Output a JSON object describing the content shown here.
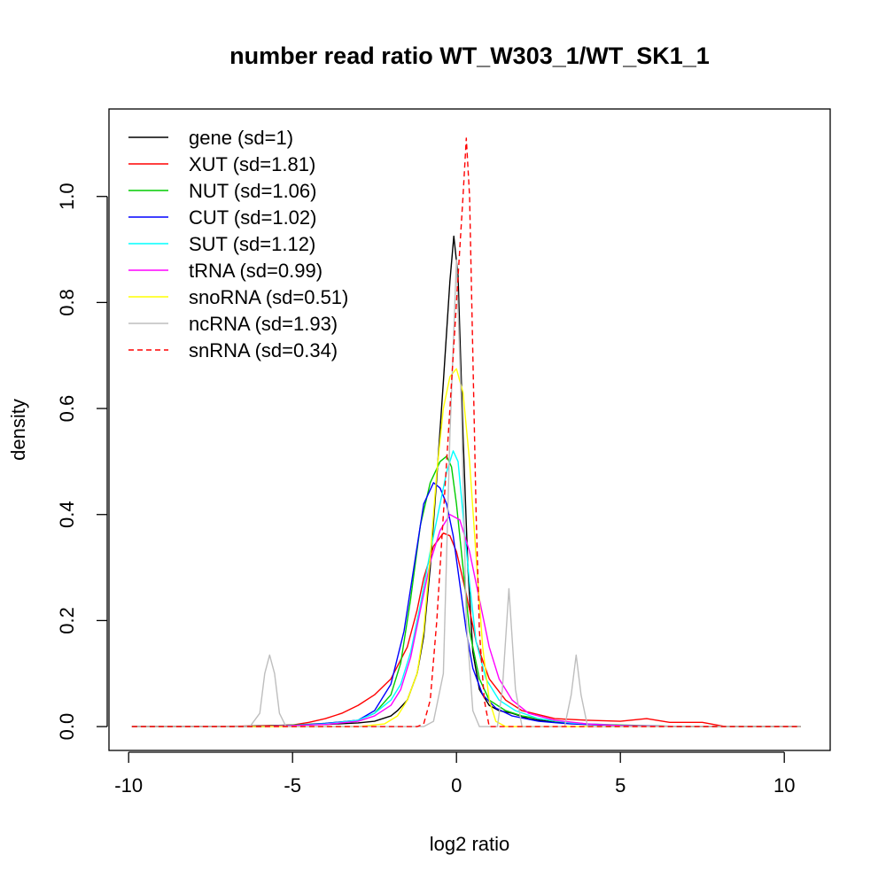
{
  "chart_data": {
    "type": "line",
    "title": "number read ratio WT_W303_1/WT_SK1_1",
    "xlabel": "log2 ratio",
    "ylabel": "density",
    "xlim": [
      -10.6,
      11.4
    ],
    "ylim": [
      -0.045,
      1.165
    ],
    "xticks": [
      -10,
      -5,
      0,
      5,
      10
    ],
    "xtick_labels": [
      "-10",
      "-5",
      "0",
      "5",
      "10"
    ],
    "yticks": [
      0.0,
      0.2,
      0.4,
      0.6,
      0.8,
      1.0
    ],
    "ytick_labels": [
      "0.0",
      "0.2",
      "0.4",
      "0.6",
      "0.8",
      "1.0"
    ],
    "grid": false,
    "legend_position": "top-left",
    "series": [
      {
        "name": "gene (sd=1)",
        "color": "#000000",
        "dash": "solid",
        "points": [
          [
            -9.9,
            0
          ],
          [
            -7,
            0
          ],
          [
            -5,
            0.003
          ],
          [
            -4,
            0.004
          ],
          [
            -3,
            0.007
          ],
          [
            -2.5,
            0.01
          ],
          [
            -2,
            0.02
          ],
          [
            -1.8,
            0.03
          ],
          [
            -1.5,
            0.05
          ],
          [
            -1.2,
            0.1
          ],
          [
            -1,
            0.17
          ],
          [
            -0.8,
            0.3
          ],
          [
            -0.6,
            0.47
          ],
          [
            -0.4,
            0.65
          ],
          [
            -0.2,
            0.84
          ],
          [
            -0.08,
            0.925
          ],
          [
            0.05,
            0.85
          ],
          [
            0.2,
            0.55
          ],
          [
            0.35,
            0.3
          ],
          [
            0.5,
            0.14
          ],
          [
            0.7,
            0.07
          ],
          [
            1,
            0.04
          ],
          [
            1.3,
            0.03
          ],
          [
            1.7,
            0.025
          ],
          [
            2.2,
            0.015
          ],
          [
            3,
            0.008
          ],
          [
            4,
            0.004
          ],
          [
            5,
            0.002
          ],
          [
            7,
            0
          ],
          [
            10.5,
            0
          ]
        ]
      },
      {
        "name": "XUT (sd=1.81)",
        "color": "#ff0000",
        "dash": "solid",
        "points": [
          [
            -9.9,
            0
          ],
          [
            -6,
            0.001
          ],
          [
            -5,
            0.003
          ],
          [
            -4.5,
            0.008
          ],
          [
            -4,
            0.015
          ],
          [
            -3.5,
            0.025
          ],
          [
            -3,
            0.04
          ],
          [
            -2.5,
            0.06
          ],
          [
            -2,
            0.09
          ],
          [
            -1.5,
            0.15
          ],
          [
            -1.2,
            0.22
          ],
          [
            -1,
            0.28
          ],
          [
            -0.7,
            0.34
          ],
          [
            -0.4,
            0.365
          ],
          [
            -0.2,
            0.36
          ],
          [
            0,
            0.33
          ],
          [
            0.3,
            0.25
          ],
          [
            0.6,
            0.16
          ],
          [
            1,
            0.09
          ],
          [
            1.5,
            0.05
          ],
          [
            2,
            0.03
          ],
          [
            3,
            0.015
          ],
          [
            4,
            0.012
          ],
          [
            5,
            0.01
          ],
          [
            5.8,
            0.015
          ],
          [
            6.5,
            0.008
          ],
          [
            7.5,
            0.008
          ],
          [
            8.2,
            0
          ],
          [
            10.5,
            0
          ]
        ]
      },
      {
        "name": "NUT (sd=1.06)",
        "color": "#00cc00",
        "dash": "solid",
        "points": [
          [
            -9.9,
            0
          ],
          [
            -6,
            0
          ],
          [
            -5,
            0.003
          ],
          [
            -4,
            0.006
          ],
          [
            -3,
            0.012
          ],
          [
            -2.5,
            0.025
          ],
          [
            -2,
            0.06
          ],
          [
            -1.7,
            0.12
          ],
          [
            -1.4,
            0.24
          ],
          [
            -1.1,
            0.38
          ],
          [
            -0.8,
            0.46
          ],
          [
            -0.5,
            0.5
          ],
          [
            -0.3,
            0.51
          ],
          [
            -0.15,
            0.49
          ],
          [
            0,
            0.42
          ],
          [
            0.2,
            0.3
          ],
          [
            0.4,
            0.18
          ],
          [
            0.7,
            0.09
          ],
          [
            1,
            0.05
          ],
          [
            1.5,
            0.03
          ],
          [
            2,
            0.02
          ],
          [
            3,
            0.01
          ],
          [
            4,
            0.005
          ],
          [
            5,
            0.003
          ],
          [
            7,
            0
          ],
          [
            10.5,
            0
          ]
        ]
      },
      {
        "name": "CUT (sd=1.02)",
        "color": "#0000ff",
        "dash": "solid",
        "points": [
          [
            -9.9,
            0
          ],
          [
            -6,
            0
          ],
          [
            -5,
            0.002
          ],
          [
            -4,
            0.006
          ],
          [
            -3,
            0.012
          ],
          [
            -2.5,
            0.03
          ],
          [
            -2,
            0.08
          ],
          [
            -1.6,
            0.18
          ],
          [
            -1.3,
            0.3
          ],
          [
            -1,
            0.42
          ],
          [
            -0.7,
            0.46
          ],
          [
            -0.5,
            0.45
          ],
          [
            -0.3,
            0.42
          ],
          [
            -0.1,
            0.36
          ],
          [
            0.1,
            0.27
          ],
          [
            0.3,
            0.18
          ],
          [
            0.5,
            0.11
          ],
          [
            0.8,
            0.06
          ],
          [
            1.2,
            0.035
          ],
          [
            1.7,
            0.02
          ],
          [
            2.5,
            0.01
          ],
          [
            3.5,
            0.005
          ],
          [
            5,
            0.002
          ],
          [
            7,
            0
          ],
          [
            10.5,
            0
          ]
        ]
      },
      {
        "name": "SUT (sd=1.12)",
        "color": "#00ffff",
        "dash": "solid",
        "points": [
          [
            -9.9,
            0
          ],
          [
            -6,
            0
          ],
          [
            -5,
            0.002
          ],
          [
            -4,
            0.005
          ],
          [
            -3,
            0.012
          ],
          [
            -2.5,
            0.025
          ],
          [
            -2,
            0.05
          ],
          [
            -1.7,
            0.08
          ],
          [
            -1.4,
            0.14
          ],
          [
            -1.1,
            0.23
          ],
          [
            -0.8,
            0.33
          ],
          [
            -0.5,
            0.42
          ],
          [
            -0.3,
            0.48
          ],
          [
            -0.1,
            0.52
          ],
          [
            0.05,
            0.5
          ],
          [
            0.2,
            0.4
          ],
          [
            0.4,
            0.27
          ],
          [
            0.6,
            0.16
          ],
          [
            0.9,
            0.09
          ],
          [
            1.3,
            0.05
          ],
          [
            1.8,
            0.03
          ],
          [
            2.5,
            0.015
          ],
          [
            3.5,
            0.007
          ],
          [
            5,
            0.002
          ],
          [
            7,
            0
          ],
          [
            10.5,
            0
          ]
        ]
      },
      {
        "name": "tRNA (sd=0.99)",
        "color": "#ff00ff",
        "dash": "solid",
        "points": [
          [
            -9.9,
            0
          ],
          [
            -6,
            0
          ],
          [
            -5,
            0.002
          ],
          [
            -4,
            0.004
          ],
          [
            -3,
            0.01
          ],
          [
            -2.5,
            0.02
          ],
          [
            -2,
            0.04
          ],
          [
            -1.7,
            0.07
          ],
          [
            -1.4,
            0.13
          ],
          [
            -1.1,
            0.22
          ],
          [
            -0.8,
            0.31
          ],
          [
            -0.5,
            0.37
          ],
          [
            -0.2,
            0.4
          ],
          [
            0.1,
            0.39
          ],
          [
            0.4,
            0.33
          ],
          [
            0.7,
            0.24
          ],
          [
            1,
            0.15
          ],
          [
            1.3,
            0.09
          ],
          [
            1.7,
            0.05
          ],
          [
            2.2,
            0.025
          ],
          [
            3,
            0.012
          ],
          [
            4,
            0.005
          ],
          [
            5,
            0.002
          ],
          [
            7,
            0
          ],
          [
            10.5,
            0
          ]
        ]
      },
      {
        "name": "snoRNA (sd=0.51)",
        "color": "#ffff00",
        "dash": "solid",
        "points": [
          [
            -9.9,
            0
          ],
          [
            -3,
            0
          ],
          [
            -2.2,
            0.005
          ],
          [
            -1.8,
            0.02
          ],
          [
            -1.5,
            0.05
          ],
          [
            -1.2,
            0.1
          ],
          [
            -1,
            0.18
          ],
          [
            -0.8,
            0.32
          ],
          [
            -0.6,
            0.48
          ],
          [
            -0.4,
            0.6
          ],
          [
            -0.2,
            0.66
          ],
          [
            0,
            0.675
          ],
          [
            0.2,
            0.63
          ],
          [
            0.4,
            0.5
          ],
          [
            0.6,
            0.32
          ],
          [
            0.8,
            0.15
          ],
          [
            1,
            0.05
          ],
          [
            1.2,
            0.01
          ],
          [
            1.5,
            0
          ],
          [
            10.5,
            0
          ]
        ]
      },
      {
        "name": "ncRNA (sd=1.93)",
        "color": "#bebebe",
        "dash": "solid",
        "points": [
          [
            -9.9,
            0
          ],
          [
            -6.3,
            0
          ],
          [
            -6,
            0.025
          ],
          [
            -5.85,
            0.1
          ],
          [
            -5.7,
            0.135
          ],
          [
            -5.55,
            0.1
          ],
          [
            -5.4,
            0.025
          ],
          [
            -5.2,
            0
          ],
          [
            -1,
            0
          ],
          [
            -0.7,
            0.01
          ],
          [
            -0.4,
            0.1
          ],
          [
            -0.2,
            0.55
          ],
          [
            0,
            0.88
          ],
          [
            0.15,
            0.6
          ],
          [
            0.3,
            0.2
          ],
          [
            0.5,
            0.03
          ],
          [
            0.7,
            0
          ],
          [
            1.25,
            0
          ],
          [
            1.4,
            0.07
          ],
          [
            1.6,
            0.26
          ],
          [
            1.8,
            0.07
          ],
          [
            2,
            0
          ],
          [
            3.3,
            0
          ],
          [
            3.5,
            0.06
          ],
          [
            3.65,
            0.135
          ],
          [
            3.8,
            0.06
          ],
          [
            4,
            0
          ],
          [
            10.5,
            0
          ]
        ]
      },
      {
        "name": "snRNA (sd=0.34)",
        "color": "#ff0000",
        "dash": "dashed",
        "points": [
          [
            -9.9,
            0
          ],
          [
            -1.2,
            0
          ],
          [
            -1,
            0.005
          ],
          [
            -0.8,
            0.05
          ],
          [
            -0.6,
            0.2
          ],
          [
            -0.4,
            0.4
          ],
          [
            -0.2,
            0.6
          ],
          [
            0,
            0.8
          ],
          [
            0.1,
            0.9
          ],
          [
            0.2,
            1.0
          ],
          [
            0.3,
            1.11
          ],
          [
            0.4,
            1.0
          ],
          [
            0.5,
            0.7
          ],
          [
            0.6,
            0.4
          ],
          [
            0.7,
            0.18
          ],
          [
            0.85,
            0.05
          ],
          [
            1,
            0
          ],
          [
            10.5,
            0
          ]
        ]
      }
    ]
  }
}
